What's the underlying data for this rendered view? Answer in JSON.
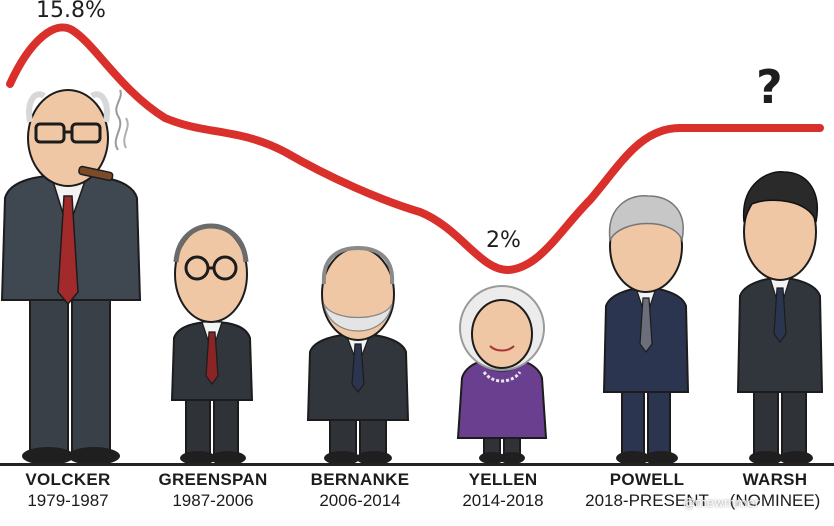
{
  "annotations": {
    "peak": "15.8%",
    "low": "2%",
    "unknown": "?"
  },
  "colors": {
    "curve": "#d9302b",
    "suit_dark": "#2d3339",
    "suit_navy": "#2c3550",
    "tie_red": "#a32a2a",
    "jacket_purple": "#6a3f8f",
    "skin": "#efc7a4"
  },
  "chairs": [
    {
      "name": "VOLCKER",
      "years": "1979-1987"
    },
    {
      "name": "GREENSPAN",
      "years": "1987-2006"
    },
    {
      "name": "BERNANKE",
      "years": "2006-2014"
    },
    {
      "name": "YELLEN",
      "years": "2014-2018"
    },
    {
      "name": "POWELL",
      "years": "2018-PRESENT"
    },
    {
      "name": "WARSH",
      "years": "(NOMINEE)"
    }
  ],
  "watermark": "@mewmmer"
}
